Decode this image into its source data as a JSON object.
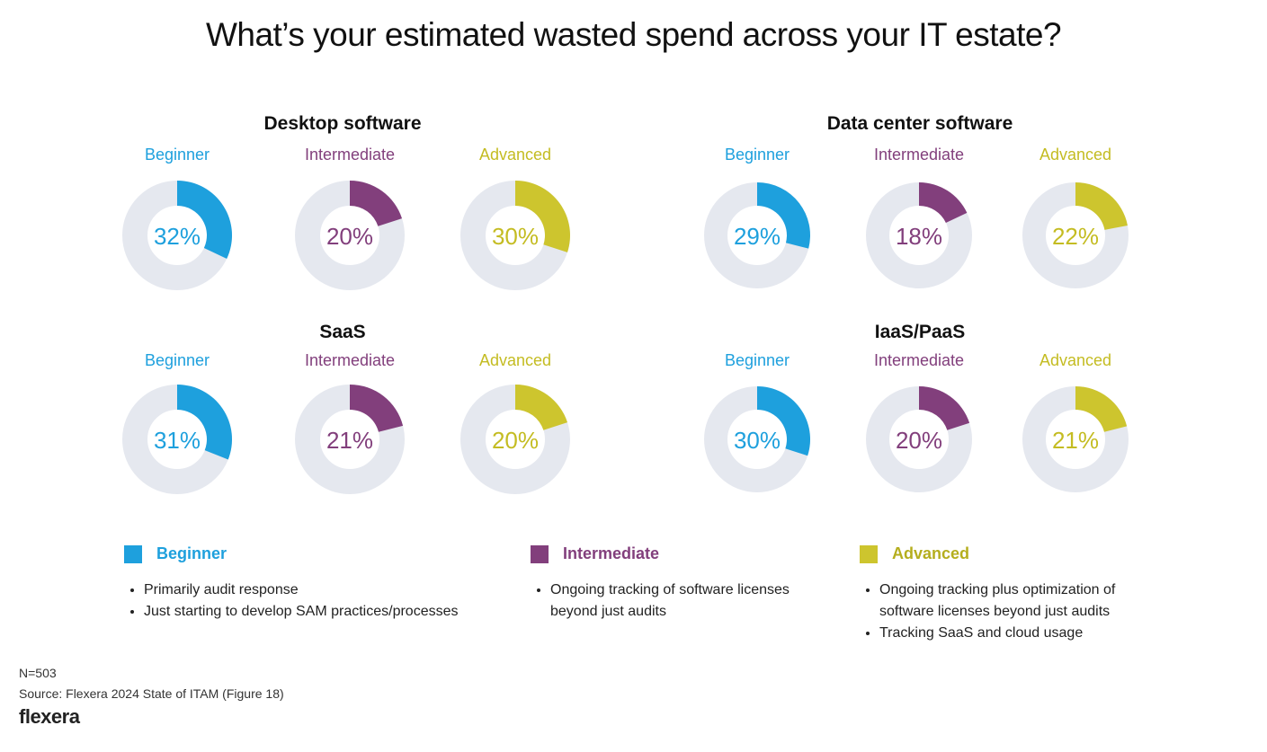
{
  "title": "What’s your estimated wasted spend across your IT estate?",
  "colors": {
    "Beginner": "#1ea0dd",
    "Intermediate": "#823f7c",
    "Advanced": "#cdc52e",
    "remainder": "#e5e8ef"
  },
  "chart_data": [
    {
      "type": "pie",
      "title": "Desktop software",
      "categories": [
        "Beginner",
        "Intermediate",
        "Advanced"
      ],
      "values": [
        32,
        20,
        30
      ],
      "unit": "%"
    },
    {
      "type": "pie",
      "title": "Data center software",
      "categories": [
        "Beginner",
        "Intermediate",
        "Advanced"
      ],
      "values": [
        29,
        18,
        22
      ],
      "unit": "%"
    },
    {
      "type": "pie",
      "title": "SaaS",
      "categories": [
        "Beginner",
        "Intermediate",
        "Advanced"
      ],
      "values": [
        31,
        21,
        20
      ],
      "unit": "%"
    },
    {
      "type": "pie",
      "title": "IaaS/PaaS",
      "categories": [
        "Beginner",
        "Intermediate",
        "Advanced"
      ],
      "values": [
        30,
        20,
        21
      ],
      "unit": "%"
    }
  ],
  "legend": [
    {
      "label": "Beginner",
      "bullets": [
        "Primarily audit response",
        "Just starting to develop SAM practices/processes"
      ]
    },
    {
      "label": "Intermediate",
      "bullets": [
        "Ongoing tracking of software licenses beyond just audits"
      ]
    },
    {
      "label": "Advanced",
      "bullets": [
        "Ongoing tracking plus optimization of software licenses beyond just audits",
        "Tracking SaaS and cloud usage"
      ]
    }
  ],
  "footer": {
    "n": "N=503",
    "source": "Source: Flexera 2024 State of ITAM (Figure 18)",
    "logo": "flexera"
  }
}
